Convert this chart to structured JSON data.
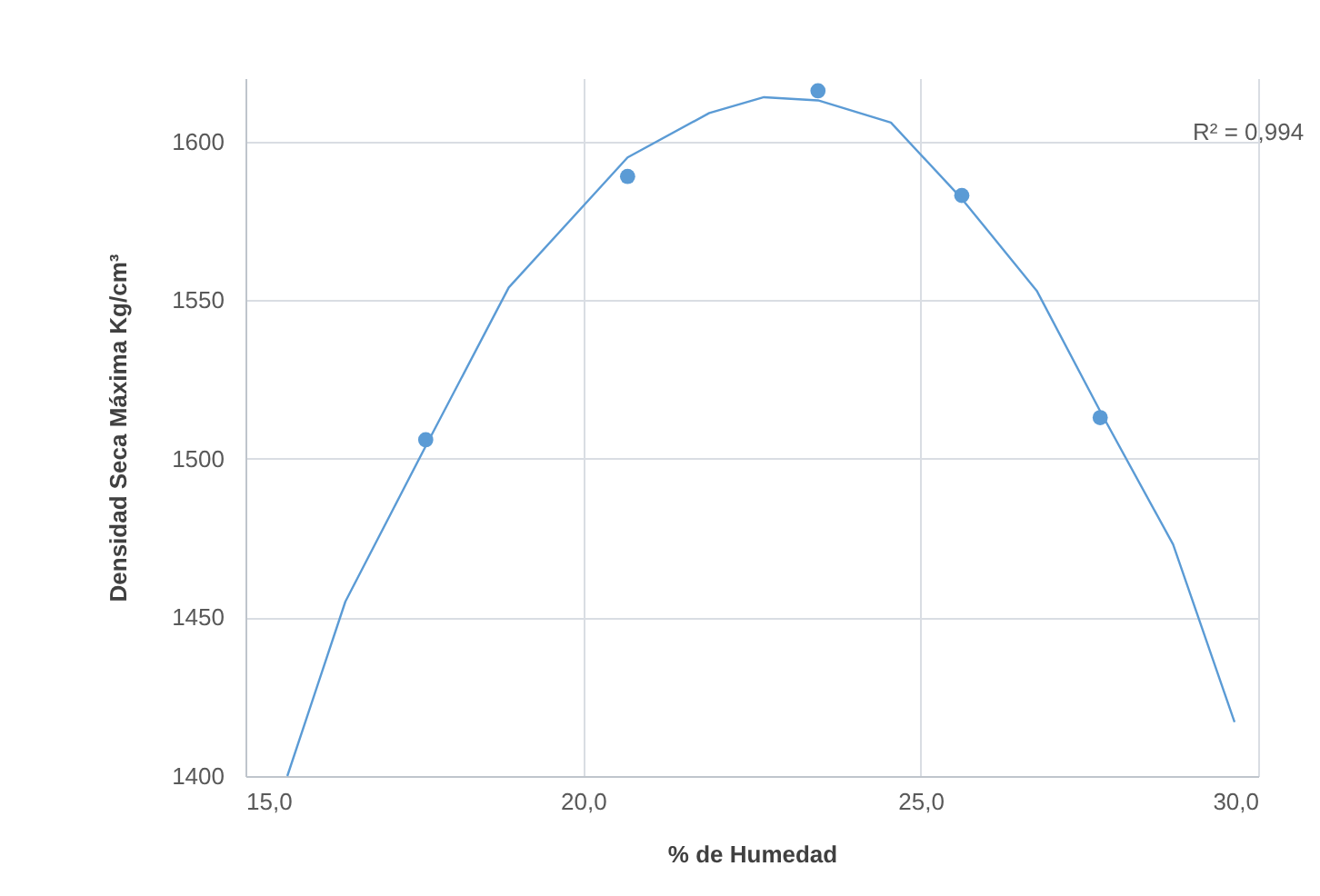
{
  "chart_data": {
    "type": "scatter",
    "xlabel": "% de Humedad",
    "ylabel": "Densidad Seca Máxima Kg/cm³",
    "series": [
      {
        "color": "#5b9bd5",
        "marker": "circle",
        "x": [
          17.67,
          20.66,
          23.48,
          25.61,
          27.66
        ],
        "values": [
          1506,
          1589,
          1616,
          1583,
          1513
        ]
      },
      {
        "type": "line",
        "color": "#5b9bd5",
        "marker": "none",
        "x": [
          15.62,
          16.48,
          17.67,
          18.9,
          20.66,
          21.87,
          22.68,
          23.48,
          24.56,
          25.61,
          26.72,
          27.66,
          28.74,
          29.65
        ],
        "values": [
          1400,
          1455,
          1504,
          1554,
          1595,
          1609,
          1614,
          1613,
          1606,
          1582,
          1553,
          1515,
          1473,
          1417
        ]
      }
    ],
    "annotations": [
      "R² = 0,994"
    ],
    "xlim": [
      15,
      30
    ],
    "xticks": [
      {
        "value": 15,
        "label": "15,0"
      },
      {
        "value": 20,
        "label": "20,0"
      },
      {
        "value": 25,
        "label": "25,0"
      },
      {
        "value": 30,
        "label": "30,0"
      }
    ],
    "ylim": [
      1400,
      1620
    ],
    "yticks": [
      1400,
      1450,
      1500,
      1550,
      1600
    ],
    "grid": true
  }
}
